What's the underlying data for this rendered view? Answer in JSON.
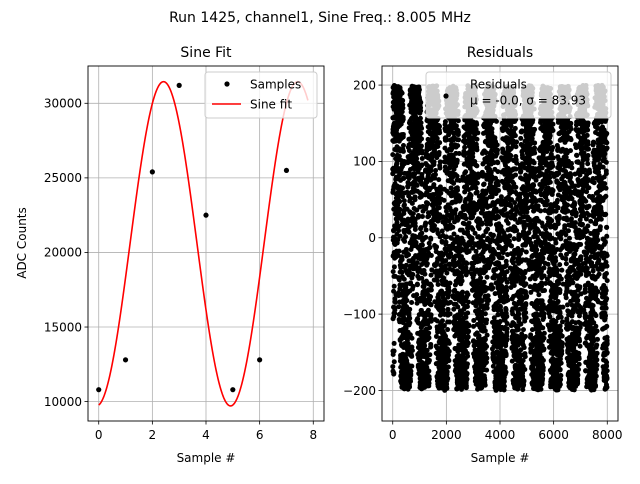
{
  "suptitle": "Run 1425, channel1, Sine Freq.: 8.005 MHz",
  "chart_data": [
    {
      "type": "line",
      "title": "Sine Fit",
      "xlabel": "Sample #",
      "ylabel": "ADC Counts",
      "xlim": [
        -0.4,
        8.4
      ],
      "ylim": [
        8700,
        32500
      ],
      "xticks": [
        0,
        2,
        4,
        6,
        8
      ],
      "yticks": [
        10000,
        15000,
        20000,
        25000,
        30000
      ],
      "grid": true,
      "legend_position": "top-right",
      "series": [
        {
          "name": "Samples",
          "style": "points",
          "color": "#000000",
          "x": [
            0,
            1,
            2,
            3,
            4,
            5,
            6,
            7
          ],
          "y": [
            10800,
            12800,
            25400,
            31200,
            22500,
            10800,
            12800,
            25500
          ]
        },
        {
          "name": "Sine fit",
          "style": "line",
          "color": "#ff0000",
          "model": {
            "offset": 20580,
            "amplitude": 10870,
            "frequency": 0.2001,
            "phase": -1.4675
          },
          "x_range": [
            0,
            7.8
          ]
        }
      ]
    },
    {
      "type": "scatter",
      "title": "Residuals",
      "xlabel": "Sample #",
      "xlim": [
        -400,
        8400
      ],
      "ylim": [
        -240,
        225
      ],
      "xticks": [
        0,
        2000,
        4000,
        6000,
        8000
      ],
      "yticks": [
        -200,
        -100,
        0,
        100,
        200
      ],
      "ytick_labels": [
        "−200",
        "−100",
        "0",
        "100",
        "200"
      ],
      "grid": true,
      "legend_position": "top-right",
      "series": [
        {
          "name": "Residuals",
          "color": "#000000",
          "count": 8000,
          "x_range": [
            0,
            8000
          ],
          "amplitude": 200,
          "beat_period": 690,
          "mu": -0.0,
          "sigma": 83.93
        }
      ],
      "legend_stats": "μ = -0.0, σ = 83.93"
    }
  ]
}
